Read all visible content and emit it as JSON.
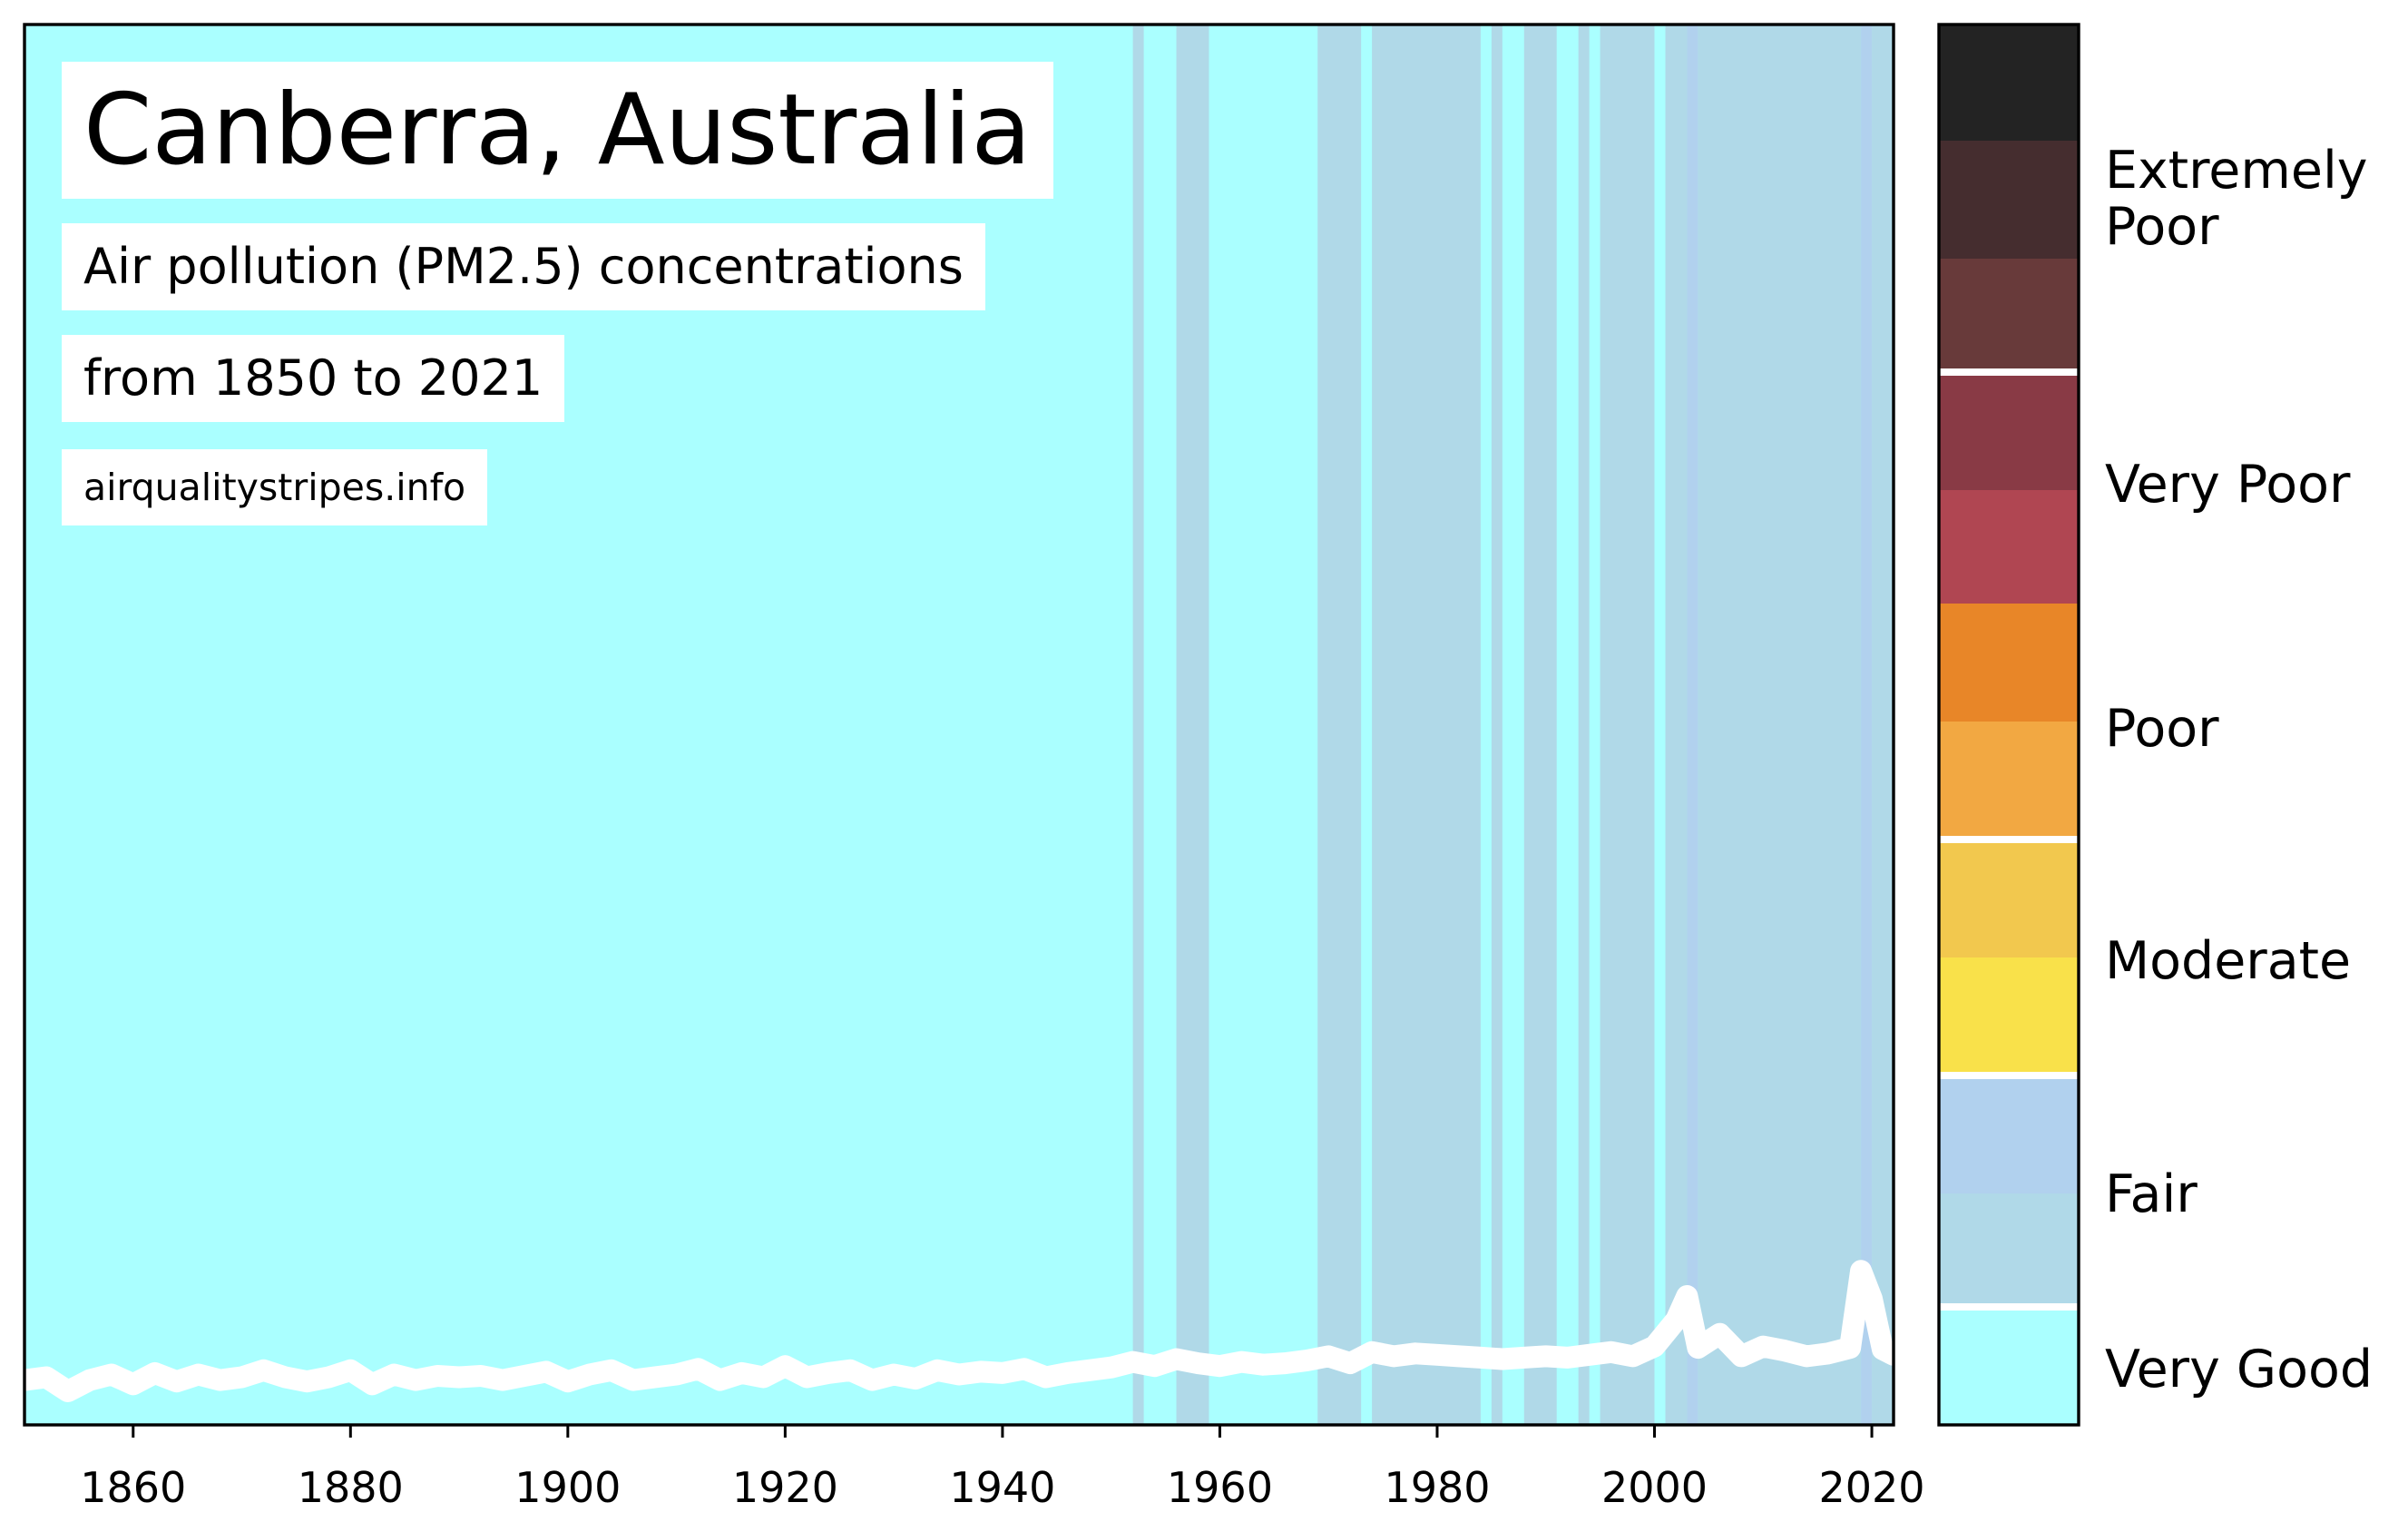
{
  "chart_data": {
    "type": "heatmap",
    "title": "Canberra, Australia",
    "subtitle": "Air pollution (PM2.5) concentrations",
    "subtitle2": "from 1850 to 2021",
    "source": "airqualitystripes.info",
    "xlabel": "",
    "ylabel": "",
    "xlim": [
      1850,
      2022
    ],
    "ylim": [
      0,
      100
    ],
    "x_ticks": [
      "1860",
      "1880",
      "1900",
      "1920",
      "1940",
      "1960",
      "1980",
      "2000",
      "2020"
    ],
    "grid": false,
    "categories": [
      "Very Good",
      "Fair",
      "Moderate",
      "Poor",
      "Very Poor",
      "Extremely Poor"
    ],
    "colors": {
      "very_good": "#aaffff",
      "fair_light": "#b0d9e8",
      "fair_dark": "#b1d1ee",
      "moderate_light": "#f9e14a",
      "moderate_dark": "#f2c84e",
      "poor_light": "#f2a842",
      "poor_dark": "#e88628",
      "very_poor_light": "#b04652",
      "very_poor_dark": "#893a45",
      "extremely_poor_1": "#683a3a",
      "extremely_poor_2": "#452d2f",
      "extremely_poor_3": "#232323",
      "line": "#ffffff"
    },
    "fair_stripes": [
      {
        "from": 1952,
        "to": 1953,
        "level": "fair_light"
      },
      {
        "from": 1956,
        "to": 1959,
        "level": "fair_light"
      },
      {
        "from": 1969,
        "to": 1973,
        "level": "fair_light"
      },
      {
        "from": 1974,
        "to": 1984,
        "level": "fair_light"
      },
      {
        "from": 1985,
        "to": 1986,
        "level": "fair_light"
      },
      {
        "from": 1988,
        "to": 1991,
        "level": "fair_light"
      },
      {
        "from": 1993,
        "to": 1994,
        "level": "fair_light"
      },
      {
        "from": 1995,
        "to": 2000,
        "level": "fair_light"
      },
      {
        "from": 2001,
        "to": 2003,
        "level": "fair_light"
      },
      {
        "from": 2003,
        "to": 2004,
        "level": "fair_dark"
      },
      {
        "from": 2004,
        "to": 2019,
        "level": "fair_light"
      },
      {
        "from": 2019,
        "to": 2020,
        "level": "fair_dark"
      },
      {
        "from": 2020,
        "to": 2022,
        "level": "fair_light"
      }
    ],
    "series": [
      {
        "x": [
          1850,
          1852,
          1854,
          1856,
          1858,
          1860,
          1862,
          1864,
          1866,
          1868,
          1870,
          1872,
          1874,
          1876,
          1878,
          1880,
          1882,
          1884,
          1886,
          1888,
          1890,
          1892,
          1894,
          1896,
          1898,
          1900,
          1902,
          1904,
          1906,
          1908,
          1910,
          1912,
          1914,
          1916,
          1918,
          1920,
          1922,
          1924,
          1926,
          1928,
          1930,
          1932,
          1934,
          1936,
          1938,
          1940,
          1942,
          1944,
          1946,
          1948,
          1950,
          1952,
          1954,
          1956,
          1958,
          1960,
          1962,
          1964,
          1966,
          1968,
          1970,
          1972,
          1974,
          1976,
          1978,
          1980,
          1982,
          1984,
          1986,
          1988,
          1990,
          1992,
          1994,
          1996,
          1998,
          2000,
          2002,
          2003,
          2004,
          2006,
          2008,
          2010,
          2012,
          2014,
          2016,
          2018,
          2019,
          2020,
          2021,
          2022
        ],
        "y": [
          3.2,
          3.4,
          2.4,
          3.2,
          3.6,
          2.9,
          3.7,
          3.1,
          3.6,
          3.2,
          3.4,
          3.9,
          3.4,
          3.1,
          3.4,
          3.9,
          2.9,
          3.6,
          3.2,
          3.5,
          3.4,
          3.5,
          3.2,
          3.5,
          3.8,
          3.1,
          3.6,
          3.9,
          3.2,
          3.4,
          3.6,
          4.0,
          3.2,
          3.7,
          3.4,
          4.2,
          3.4,
          3.7,
          3.9,
          3.2,
          3.6,
          3.3,
          3.9,
          3.6,
          3.8,
          3.7,
          4.0,
          3.4,
          3.7,
          3.9,
          4.1,
          4.5,
          4.2,
          4.7,
          4.4,
          4.2,
          4.5,
          4.3,
          4.4,
          4.6,
          4.9,
          4.4,
          5.2,
          4.9,
          5.1,
          5.0,
          4.9,
          4.8,
          4.7,
          4.8,
          4.9,
          4.8,
          5.0,
          5.2,
          4.9,
          5.6,
          7.5,
          9.2,
          5.5,
          6.5,
          4.9,
          5.6,
          5.3,
          4.9,
          5.1,
          5.5,
          11.0,
          9.0,
          5.4,
          5.0
        ]
      }
    ]
  }
}
